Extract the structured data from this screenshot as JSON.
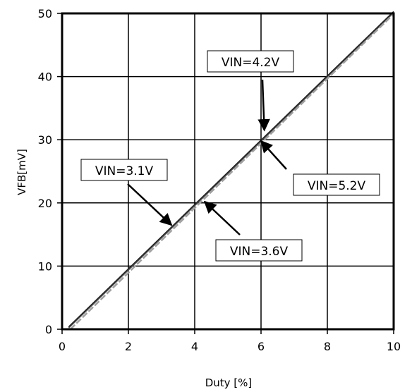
{
  "chart_data": {
    "type": "line",
    "xlabel": "Duty [%]",
    "ylabel": "VFB[mV]",
    "xlim": [
      0,
      10
    ],
    "ylim": [
      0,
      50
    ],
    "xticks": [
      "0",
      "2",
      "4",
      "6",
      "8",
      "10"
    ],
    "yticks": [
      "0",
      "10",
      "20",
      "30",
      "40",
      "50"
    ],
    "grid": true,
    "series": [
      {
        "name": "VIN=3.1V",
        "color": "#333333",
        "x": [
          0.2,
          10
        ],
        "y": [
          0.3,
          50.2
        ]
      },
      {
        "name": "VIN=3.6V",
        "color": "#555555",
        "x": [
          0.2,
          10
        ],
        "y": [
          0.2,
          50.1
        ]
      },
      {
        "name": "VIN=4.2V",
        "color": "#222222",
        "x": [
          0.2,
          10
        ],
        "y": [
          0.4,
          50.3
        ]
      },
      {
        "name": "VIN=5.2V",
        "color": "#a0a0a0",
        "x": [
          0.25,
          10
        ],
        "y": [
          0.0,
          49.9
        ],
        "dashed": true
      }
    ],
    "annotations": [
      {
        "text": "VIN=4.2V",
        "target_x": 6.1,
        "target_y": 31.5
      },
      {
        "text": "VIN=3.1V",
        "target_x": 3.3,
        "target_y": 16.5
      },
      {
        "text": "VIN=5.2V",
        "target_x": 6.0,
        "target_y": 29.8
      },
      {
        "text": "VIN=3.6V",
        "target_x": 4.3,
        "target_y": 20.2
      }
    ]
  }
}
